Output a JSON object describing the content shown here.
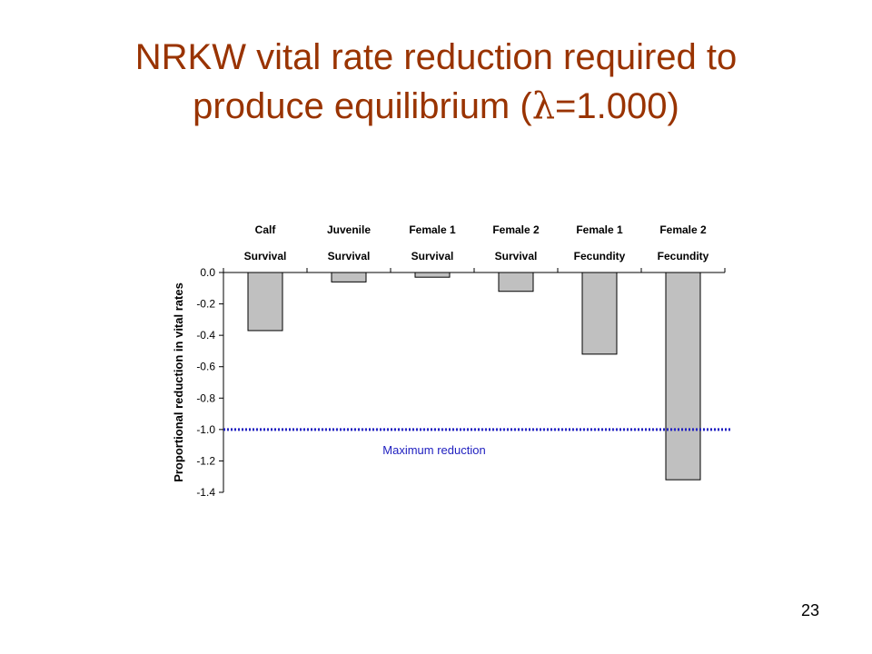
{
  "slide": {
    "title_line1": "NRKW vital rate reduction required to",
    "title_line2_prefix": "produce equilibrium (",
    "title_symbol": "λ",
    "title_line2_suffix": "=1.000)",
    "slide_number": "23",
    "title_color": "#993300"
  },
  "chart_data": {
    "type": "bar",
    "categories": [
      [
        "Calf",
        "Survival"
      ],
      [
        "Juvenile",
        "Survival"
      ],
      [
        "Female 1",
        "Survival"
      ],
      [
        "Female 2",
        "Survival"
      ],
      [
        "Female 1",
        "Fecundity"
      ],
      [
        "Female 2",
        "Fecundity"
      ]
    ],
    "values": [
      -0.37,
      -0.06,
      -0.03,
      -0.12,
      -0.52,
      -1.32
    ],
    "ylabel": "Proportional reduction in vital rates",
    "xlabel": "",
    "ylim": [
      -1.4,
      0.0
    ],
    "yticks": [
      "0.0",
      "-0.2",
      "-0.4",
      "-0.6",
      "-0.8",
      "-1.0",
      "-1.2",
      "-1.4"
    ],
    "category_labels_position": "top",
    "grid": false,
    "bar_color": "#c0c0c0",
    "reference_line": {
      "value": -1.0,
      "label": "Maximum reduction",
      "color": "#2020c0",
      "style": "dotted"
    }
  }
}
